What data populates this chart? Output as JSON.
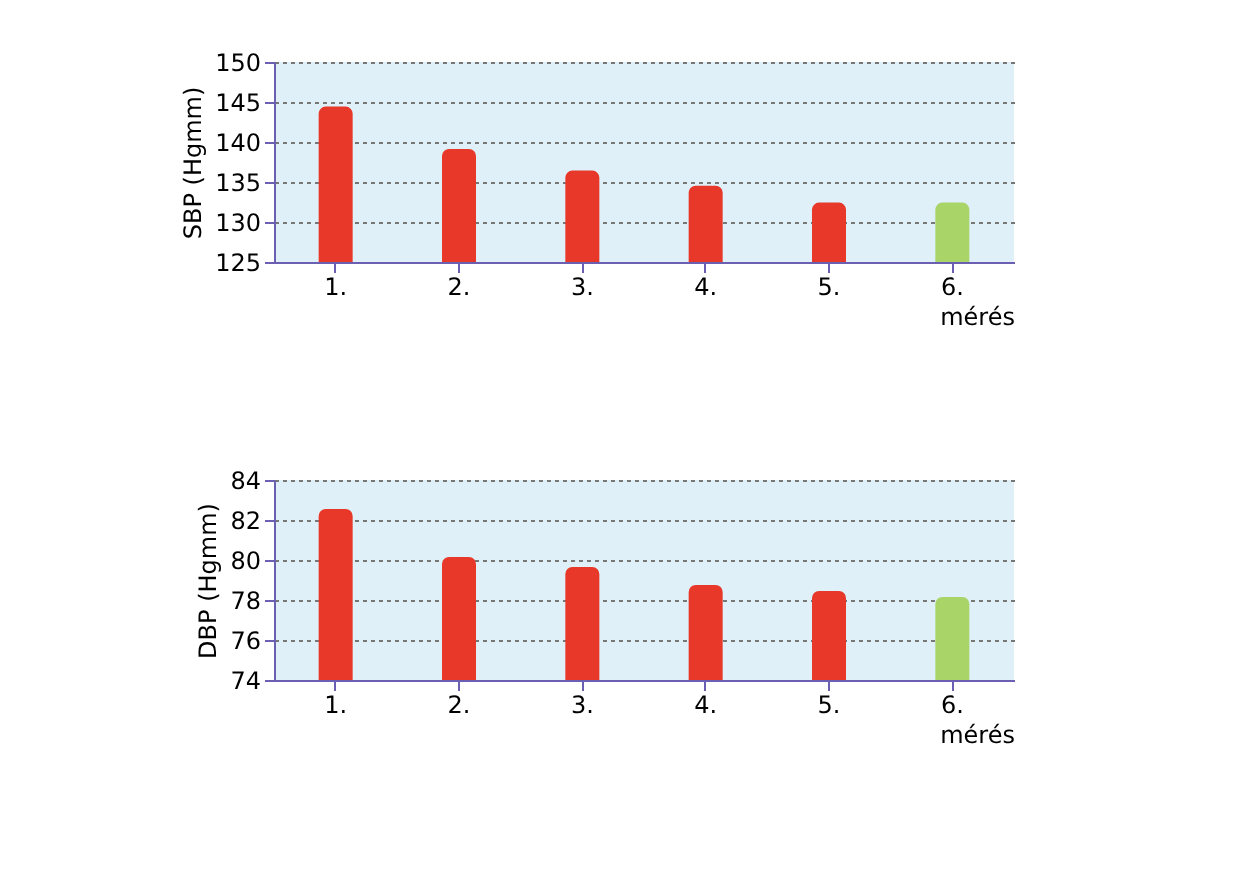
{
  "chart_data": [
    {
      "type": "bar",
      "ylabel": "SBP (Hgmm)",
      "xlabel": "mérés",
      "categories": [
        "1.",
        "2.",
        "3.",
        "4.",
        "5.",
        "6."
      ],
      "values": [
        144.3,
        139.0,
        136.3,
        134.4,
        132.3,
        132.3
      ],
      "colors": [
        "#e8382a",
        "#e8382a",
        "#e8382a",
        "#e8382a",
        "#e8382a",
        "#a8d468"
      ],
      "ylim": [
        125,
        150
      ],
      "yticks": [
        125,
        130,
        135,
        140,
        145,
        150
      ],
      "grid": "y"
    },
    {
      "type": "bar",
      "ylabel": "DBP (Hgmm)",
      "xlabel": "mérés",
      "categories": [
        "1.",
        "2.",
        "3.",
        "4.",
        "5.",
        "6."
      ],
      "values": [
        82.5,
        80.1,
        79.6,
        78.7,
        78.4,
        78.1
      ],
      "colors": [
        "#e8382a",
        "#e8382a",
        "#e8382a",
        "#e8382a",
        "#e8382a",
        "#a8d468"
      ],
      "ylim": [
        74,
        84
      ],
      "yticks": [
        74,
        76,
        78,
        80,
        82,
        84
      ],
      "grid": "y"
    }
  ]
}
